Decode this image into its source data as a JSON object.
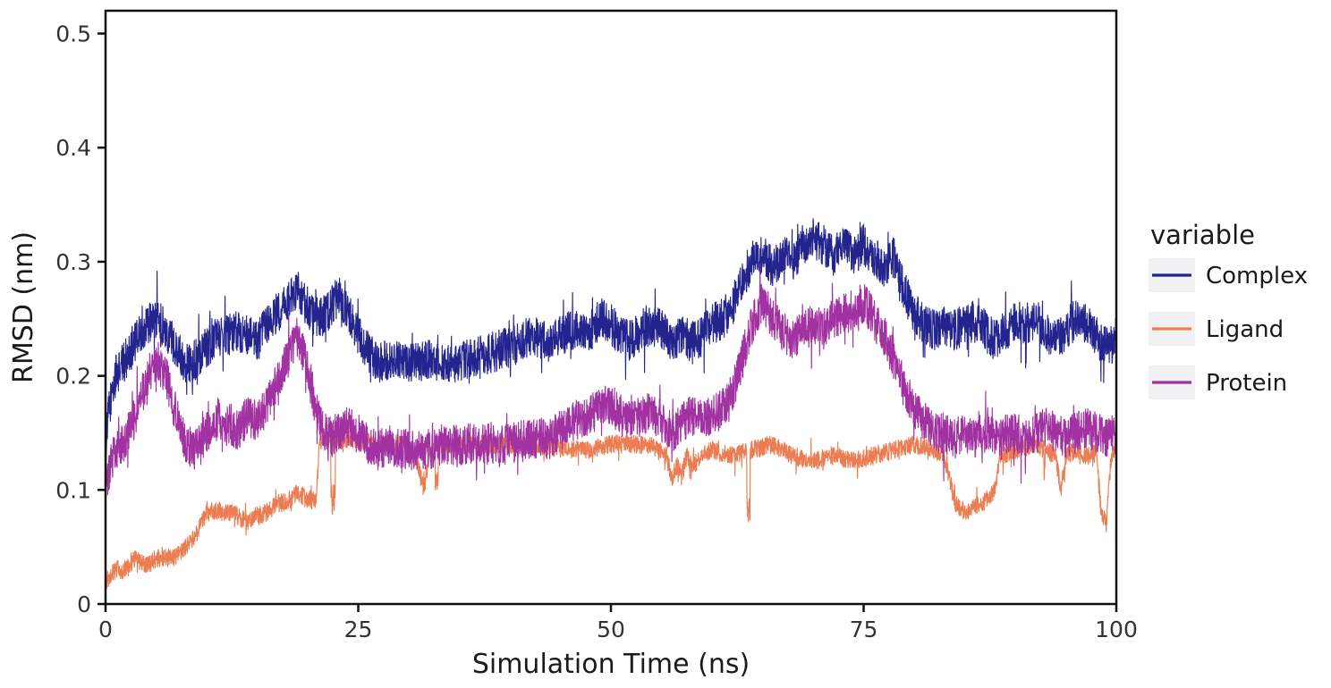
{
  "figure": {
    "background": "#ffffff",
    "spine_color": "#111111",
    "tick_color": "#111111",
    "legend_swatch_bg": "#f1f1f4"
  },
  "chart_data": {
    "type": "line",
    "title": "",
    "xlabel": "Simulation Time (ns)",
    "ylabel": "RMSD (nm)",
    "legend_title": "variable",
    "legend_position": "right",
    "grid": false,
    "xlim": [
      0,
      100
    ],
    "ylim": [
      0,
      0.52
    ],
    "x_ticks": [
      0,
      25,
      50,
      75,
      100
    ],
    "x_tick_labels": [
      "0",
      "25",
      "50",
      "75",
      "100"
    ],
    "y_ticks": [
      0,
      0.1,
      0.2,
      0.3,
      0.4,
      0.5
    ],
    "y_tick_labels": [
      "0",
      "0.1",
      "0.2",
      "0.3",
      "0.4",
      "0.5"
    ],
    "series": [
      {
        "name": "Complex",
        "color": "#24248f",
        "noise": 0.018,
        "keypoints": [
          [
            0,
            0.13
          ],
          [
            0.3,
            0.17
          ],
          [
            1,
            0.2
          ],
          [
            2,
            0.215
          ],
          [
            3,
            0.23
          ],
          [
            4,
            0.245
          ],
          [
            5,
            0.25
          ],
          [
            6,
            0.24
          ],
          [
            7,
            0.225
          ],
          [
            8,
            0.21
          ],
          [
            9,
            0.215
          ],
          [
            10,
            0.225
          ],
          [
            11,
            0.235
          ],
          [
            12,
            0.235
          ],
          [
            13,
            0.24
          ],
          [
            14,
            0.235
          ],
          [
            15,
            0.23
          ],
          [
            16,
            0.245
          ],
          [
            17,
            0.255
          ],
          [
            18,
            0.265
          ],
          [
            19,
            0.275
          ],
          [
            20,
            0.26
          ],
          [
            21,
            0.25
          ],
          [
            22,
            0.255
          ],
          [
            23,
            0.27
          ],
          [
            24,
            0.255
          ],
          [
            25,
            0.235
          ],
          [
            26,
            0.22
          ],
          [
            27,
            0.21
          ],
          [
            28,
            0.215
          ],
          [
            30,
            0.21
          ],
          [
            32,
            0.215
          ],
          [
            34,
            0.21
          ],
          [
            36,
            0.215
          ],
          [
            38,
            0.22
          ],
          [
            40,
            0.225
          ],
          [
            42,
            0.235
          ],
          [
            44,
            0.23
          ],
          [
            45,
            0.235
          ],
          [
            46,
            0.24
          ],
          [
            48,
            0.24
          ],
          [
            49,
            0.25
          ],
          [
            50,
            0.245
          ],
          [
            51,
            0.235
          ],
          [
            52,
            0.23
          ],
          [
            53,
            0.24
          ],
          [
            54,
            0.245
          ],
          [
            55,
            0.24
          ],
          [
            56,
            0.23
          ],
          [
            57,
            0.235
          ],
          [
            58,
            0.23
          ],
          [
            59,
            0.235
          ],
          [
            60,
            0.245
          ],
          [
            61,
            0.25
          ],
          [
            62,
            0.26
          ],
          [
            63,
            0.285
          ],
          [
            64,
            0.3
          ],
          [
            65,
            0.305
          ],
          [
            66,
            0.295
          ],
          [
            67,
            0.305
          ],
          [
            68,
            0.3
          ],
          [
            69,
            0.315
          ],
          [
            70,
            0.32
          ],
          [
            71,
            0.315
          ],
          [
            72,
            0.305
          ],
          [
            73,
            0.315
          ],
          [
            74,
            0.305
          ],
          [
            75,
            0.315
          ],
          [
            76,
            0.305
          ],
          [
            77,
            0.295
          ],
          [
            78,
            0.305
          ],
          [
            79,
            0.275
          ],
          [
            80,
            0.255
          ],
          [
            81,
            0.245
          ],
          [
            82,
            0.24
          ],
          [
            83,
            0.245
          ],
          [
            84,
            0.24
          ],
          [
            85,
            0.245
          ],
          [
            86,
            0.25
          ],
          [
            87,
            0.24
          ],
          [
            88,
            0.23
          ],
          [
            89,
            0.24
          ],
          [
            90,
            0.25
          ],
          [
            91,
            0.245
          ],
          [
            92,
            0.25
          ],
          [
            93,
            0.24
          ],
          [
            94,
            0.23
          ],
          [
            95,
            0.24
          ],
          [
            96,
            0.25
          ],
          [
            97,
            0.245
          ],
          [
            98,
            0.235
          ],
          [
            99,
            0.225
          ],
          [
            100,
            0.23
          ]
        ]
      },
      {
        "name": "Ligand",
        "color": "#ec7d52",
        "noise": 0.008,
        "down_spikes": {
          "probability": 0.0012,
          "max_depth": 0.05
        },
        "keypoints": [
          [
            0,
            0.02
          ],
          [
            1,
            0.03
          ],
          [
            2,
            0.03
          ],
          [
            3,
            0.04
          ],
          [
            4,
            0.033
          ],
          [
            5,
            0.04
          ],
          [
            6,
            0.04
          ],
          [
            7,
            0.042
          ],
          [
            8,
            0.05
          ],
          [
            9,
            0.062
          ],
          [
            10,
            0.08
          ],
          [
            11,
            0.082
          ],
          [
            12,
            0.08
          ],
          [
            13,
            0.078
          ],
          [
            14,
            0.072
          ],
          [
            15,
            0.078
          ],
          [
            16,
            0.08
          ],
          [
            17,
            0.088
          ],
          [
            18,
            0.09
          ],
          [
            19,
            0.098
          ],
          [
            20,
            0.092
          ],
          [
            20.8,
            0.09
          ],
          [
            21.2,
            0.145
          ],
          [
            22,
            0.145
          ],
          [
            24,
            0.145
          ],
          [
            26,
            0.142
          ],
          [
            28,
            0.14
          ],
          [
            30,
            0.14
          ],
          [
            31,
            0.12
          ],
          [
            31.5,
            0.1
          ],
          [
            32,
            0.132
          ],
          [
            34,
            0.14
          ],
          [
            36,
            0.14
          ],
          [
            38,
            0.14
          ],
          [
            40,
            0.14
          ],
          [
            42,
            0.14
          ],
          [
            44,
            0.138
          ],
          [
            46,
            0.135
          ],
          [
            48,
            0.135
          ],
          [
            50,
            0.14
          ],
          [
            52,
            0.14
          ],
          [
            54,
            0.138
          ],
          [
            55.5,
            0.13
          ],
          [
            56,
            0.11
          ],
          [
            56.5,
            0.122
          ],
          [
            57,
            0.112
          ],
          [
            57.5,
            0.13
          ],
          [
            58,
            0.12
          ],
          [
            59,
            0.13
          ],
          [
            60,
            0.135
          ],
          [
            62,
            0.13
          ],
          [
            64,
            0.135
          ],
          [
            66,
            0.14
          ],
          [
            68,
            0.13
          ],
          [
            70,
            0.125
          ],
          [
            72,
            0.13
          ],
          [
            74,
            0.125
          ],
          [
            76,
            0.13
          ],
          [
            78,
            0.135
          ],
          [
            80,
            0.14
          ],
          [
            82,
            0.135
          ],
          [
            83,
            0.13
          ],
          [
            84,
            0.09
          ],
          [
            85,
            0.08
          ],
          [
            86,
            0.085
          ],
          [
            87,
            0.09
          ],
          [
            88,
            0.1
          ],
          [
            88.5,
            0.13
          ],
          [
            90,
            0.135
          ],
          [
            92,
            0.14
          ],
          [
            94,
            0.13
          ],
          [
            94.5,
            0.1
          ],
          [
            95,
            0.13
          ],
          [
            96,
            0.135
          ],
          [
            97,
            0.13
          ],
          [
            98,
            0.135
          ],
          [
            98.5,
            0.08
          ],
          [
            99,
            0.07
          ],
          [
            99.5,
            0.13
          ],
          [
            100,
            0.14
          ]
        ]
      },
      {
        "name": "Protein",
        "color": "#a232a2",
        "noise": 0.018,
        "keypoints": [
          [
            0,
            0.1
          ],
          [
            0.5,
            0.12
          ],
          [
            1,
            0.135
          ],
          [
            2,
            0.145
          ],
          [
            3,
            0.165
          ],
          [
            4,
            0.195
          ],
          [
            5,
            0.215
          ],
          [
            6,
            0.2
          ],
          [
            7,
            0.165
          ],
          [
            8,
            0.14
          ],
          [
            9,
            0.135
          ],
          [
            10,
            0.15
          ],
          [
            11,
            0.165
          ],
          [
            12,
            0.155
          ],
          [
            13,
            0.15
          ],
          [
            14,
            0.165
          ],
          [
            15,
            0.16
          ],
          [
            16,
            0.175
          ],
          [
            17,
            0.195
          ],
          [
            18,
            0.215
          ],
          [
            19,
            0.235
          ],
          [
            20,
            0.205
          ],
          [
            21,
            0.165
          ],
          [
            22,
            0.145
          ],
          [
            23,
            0.15
          ],
          [
            24,
            0.155
          ],
          [
            25,
            0.15
          ],
          [
            26,
            0.14
          ],
          [
            27,
            0.135
          ],
          [
            28,
            0.14
          ],
          [
            30,
            0.135
          ],
          [
            32,
            0.135
          ],
          [
            34,
            0.14
          ],
          [
            36,
            0.14
          ],
          [
            38,
            0.14
          ],
          [
            40,
            0.14
          ],
          [
            42,
            0.145
          ],
          [
            44,
            0.145
          ],
          [
            46,
            0.16
          ],
          [
            48,
            0.165
          ],
          [
            49,
            0.175
          ],
          [
            50,
            0.175
          ],
          [
            51,
            0.165
          ],
          [
            52,
            0.16
          ],
          [
            53,
            0.165
          ],
          [
            54,
            0.17
          ],
          [
            55,
            0.16
          ],
          [
            56,
            0.15
          ],
          [
            57,
            0.16
          ],
          [
            58,
            0.165
          ],
          [
            59,
            0.16
          ],
          [
            60,
            0.165
          ],
          [
            61,
            0.17
          ],
          [
            62,
            0.185
          ],
          [
            63,
            0.215
          ],
          [
            64,
            0.245
          ],
          [
            65,
            0.265
          ],
          [
            66,
            0.25
          ],
          [
            67,
            0.24
          ],
          [
            68,
            0.23
          ],
          [
            69,
            0.24
          ],
          [
            70,
            0.245
          ],
          [
            71,
            0.24
          ],
          [
            72,
            0.25
          ],
          [
            73,
            0.255
          ],
          [
            74,
            0.255
          ],
          [
            75,
            0.265
          ],
          [
            76,
            0.25
          ],
          [
            77,
            0.235
          ],
          [
            78,
            0.215
          ],
          [
            79,
            0.19
          ],
          [
            80,
            0.17
          ],
          [
            81,
            0.16
          ],
          [
            82,
            0.15
          ],
          [
            83,
            0.15
          ],
          [
            84,
            0.145
          ],
          [
            85,
            0.15
          ],
          [
            86,
            0.145
          ],
          [
            87,
            0.15
          ],
          [
            88,
            0.145
          ],
          [
            89,
            0.15
          ],
          [
            90,
            0.15
          ],
          [
            91,
            0.145
          ],
          [
            92,
            0.15
          ],
          [
            93,
            0.155
          ],
          [
            94,
            0.15
          ],
          [
            95,
            0.145
          ],
          [
            96,
            0.15
          ],
          [
            97,
            0.155
          ],
          [
            98,
            0.15
          ],
          [
            99,
            0.145
          ],
          [
            100,
            0.15
          ]
        ]
      }
    ]
  }
}
